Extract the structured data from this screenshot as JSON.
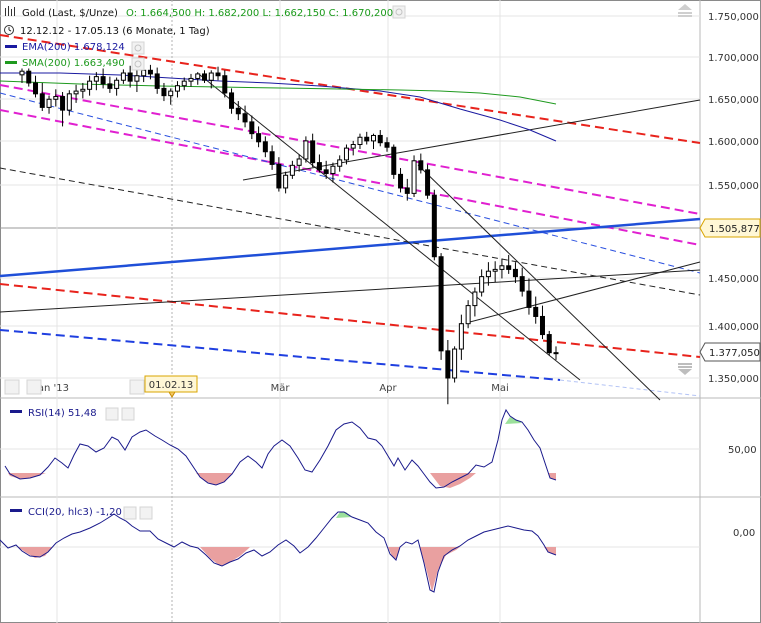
{
  "legend": {
    "title": "Gold (Last, $/Unze)",
    "ohlc": "O: 1.664,500  H: 1.682,200  L: 1.662,150  C: 1.670,200",
    "period": "12.12.12 - 17.05.13 (6 Monate, 1 Tag)",
    "ema": "EMA(200)  1.678,124",
    "sma": "SMA(200)  1.663,490"
  },
  "colors": {
    "ema": "#1a1aa0",
    "sma": "#1f9a1f",
    "candle": "#000000",
    "red_dash": "#e8231c",
    "magenta_dash": "#e020d0",
    "blue_solid": "#1f4fd8",
    "blue_dash": "#1f3fe0",
    "rsi": "#1a1a8c",
    "fill_low": "#e9a0a0",
    "fill_high": "#9be09b"
  },
  "price_axis_labels": [
    "1.750,000",
    "1.700,000",
    "1.650,000",
    "1.600,000",
    "1.550,000",
    "1.450,000",
    "1.400,000",
    "1.350,000"
  ],
  "price_tags": [
    "1.505,877",
    "1.377,050"
  ],
  "x_labels": [
    "Jan '13",
    "Mär",
    "Apr",
    "Mai"
  ],
  "crosshair_date": "01.02.13",
  "rsi": {
    "label": "RSI(14)  51,48",
    "axis": "50,00"
  },
  "cci": {
    "label": "CCI(20, hlc3)  -1,20",
    "axis": "0,00"
  },
  "chart_data": {
    "type": "candlestick",
    "title": "Gold (Last, $/Unze)",
    "period": "12.12.12 - 17.05.13",
    "ylim": [
      1345,
      1765
    ],
    "ohlc": [
      [
        1685,
        1692,
        1676,
        1689
      ],
      [
        1689,
        1692,
        1672,
        1676
      ],
      [
        1676,
        1684,
        1660,
        1664
      ],
      [
        1664,
        1676,
        1645,
        1649
      ],
      [
        1649,
        1662,
        1642,
        1658
      ],
      [
        1658,
        1669,
        1650,
        1661
      ],
      [
        1661,
        1666,
        1628,
        1646
      ],
      [
        1646,
        1668,
        1640,
        1664
      ],
      [
        1664,
        1674,
        1654,
        1667
      ],
      [
        1667,
        1676,
        1659,
        1669
      ],
      [
        1669,
        1684,
        1662,
        1678
      ],
      [
        1678,
        1688,
        1668,
        1683
      ],
      [
        1683,
        1692,
        1670,
        1675
      ],
      [
        1675,
        1683,
        1665,
        1670
      ],
      [
        1670,
        1682,
        1662,
        1679
      ],
      [
        1679,
        1691,
        1675,
        1687
      ],
      [
        1687,
        1695,
        1671,
        1678
      ],
      [
        1678,
        1690,
        1666,
        1684
      ],
      [
        1684,
        1694,
        1677,
        1690
      ],
      [
        1690,
        1696,
        1680,
        1686
      ],
      [
        1686,
        1693,
        1664,
        1670
      ],
      [
        1670,
        1676,
        1656,
        1662
      ],
      [
        1662,
        1670,
        1652,
        1667
      ],
      [
        1667,
        1678,
        1660,
        1673
      ],
      [
        1673,
        1682,
        1668,
        1678
      ],
      [
        1678,
        1686,
        1672,
        1681
      ],
      [
        1681,
        1688,
        1674,
        1686
      ],
      [
        1686,
        1690,
        1676,
        1679
      ],
      [
        1679,
        1690,
        1670,
        1687
      ],
      [
        1687,
        1694,
        1679,
        1684
      ],
      [
        1684,
        1690,
        1660,
        1665
      ],
      [
        1665,
        1670,
        1642,
        1648
      ],
      [
        1648,
        1656,
        1635,
        1642
      ],
      [
        1642,
        1651,
        1627,
        1633
      ],
      [
        1633,
        1640,
        1614,
        1620
      ],
      [
        1620,
        1628,
        1605,
        1611
      ],
      [
        1611,
        1617,
        1594,
        1600
      ],
      [
        1600,
        1607,
        1580,
        1586
      ],
      [
        1586,
        1594,
        1556,
        1560
      ],
      [
        1560,
        1578,
        1554,
        1574
      ],
      [
        1574,
        1590,
        1570,
        1585
      ],
      [
        1585,
        1597,
        1578,
        1592
      ],
      [
        1592,
        1617,
        1588,
        1612
      ],
      [
        1612,
        1620,
        1583,
        1588
      ],
      [
        1588,
        1597,
        1577,
        1580
      ],
      [
        1580,
        1590,
        1570,
        1576
      ],
      [
        1576,
        1588,
        1566,
        1584
      ],
      [
        1584,
        1596,
        1578,
        1591
      ],
      [
        1591,
        1608,
        1586,
        1604
      ],
      [
        1604,
        1612,
        1596,
        1608
      ],
      [
        1608,
        1620,
        1603,
        1616
      ],
      [
        1616,
        1622,
        1608,
        1612
      ],
      [
        1612,
        1620,
        1603,
        1618
      ],
      [
        1618,
        1624,
        1606,
        1610
      ],
      [
        1610,
        1616,
        1600,
        1605
      ],
      [
        1605,
        1608,
        1570,
        1575
      ],
      [
        1575,
        1582,
        1555,
        1560
      ],
      [
        1560,
        1570,
        1546,
        1554
      ],
      [
        1554,
        1596,
        1550,
        1590
      ],
      [
        1590,
        1598,
        1576,
        1580
      ],
      [
        1580,
        1586,
        1548,
        1552
      ],
      [
        1552,
        1558,
        1480,
        1484
      ],
      [
        1484,
        1488,
        1370,
        1380
      ],
      [
        1380,
        1392,
        1321,
        1350
      ],
      [
        1350,
        1385,
        1345,
        1382
      ],
      [
        1382,
        1420,
        1370,
        1410
      ],
      [
        1410,
        1436,
        1405,
        1430
      ],
      [
        1430,
        1450,
        1418,
        1445
      ],
      [
        1445,
        1470,
        1440,
        1462
      ],
      [
        1462,
        1478,
        1452,
        1468
      ],
      [
        1468,
        1479,
        1456,
        1470
      ],
      [
        1470,
        1482,
        1460,
        1474
      ],
      [
        1474,
        1486,
        1465,
        1470
      ],
      [
        1470,
        1478,
        1455,
        1462
      ],
      [
        1462,
        1472,
        1440,
        1446
      ],
      [
        1446,
        1460,
        1420,
        1428
      ],
      [
        1428,
        1440,
        1410,
        1418
      ],
      [
        1418,
        1430,
        1393,
        1398
      ],
      [
        1398,
        1402,
        1375,
        1378
      ],
      [
        1378,
        1385,
        1370,
        1377
      ]
    ],
    "ema200": [
      1680,
      1678,
      1676,
      1672,
      1667,
      1660,
      1652,
      1643,
      1633,
      1621,
      1608,
      1600
    ],
    "sma200": [
      1672,
      1670,
      1667,
      1664,
      1660,
      1658,
      1657,
      1656,
      1655,
      1653,
      1648,
      1642
    ],
    "rsi14": [
      38,
      34,
      30,
      42,
      40,
      48,
      55,
      45,
      35,
      58,
      40,
      32,
      46,
      56,
      62,
      70,
      75,
      60,
      52,
      40,
      32,
      28,
      35,
      45,
      42,
      38,
      30,
      62,
      70,
      75,
      54,
      40
    ],
    "cci20": [
      25,
      10,
      -50,
      -40,
      20,
      40,
      60,
      80,
      -20,
      -100,
      -90,
      -60,
      -100,
      -20,
      0,
      20,
      40,
      90,
      60,
      0,
      -100,
      -80,
      -280,
      -150,
      -60,
      0,
      20,
      40,
      60,
      30,
      -40,
      -50
    ]
  }
}
